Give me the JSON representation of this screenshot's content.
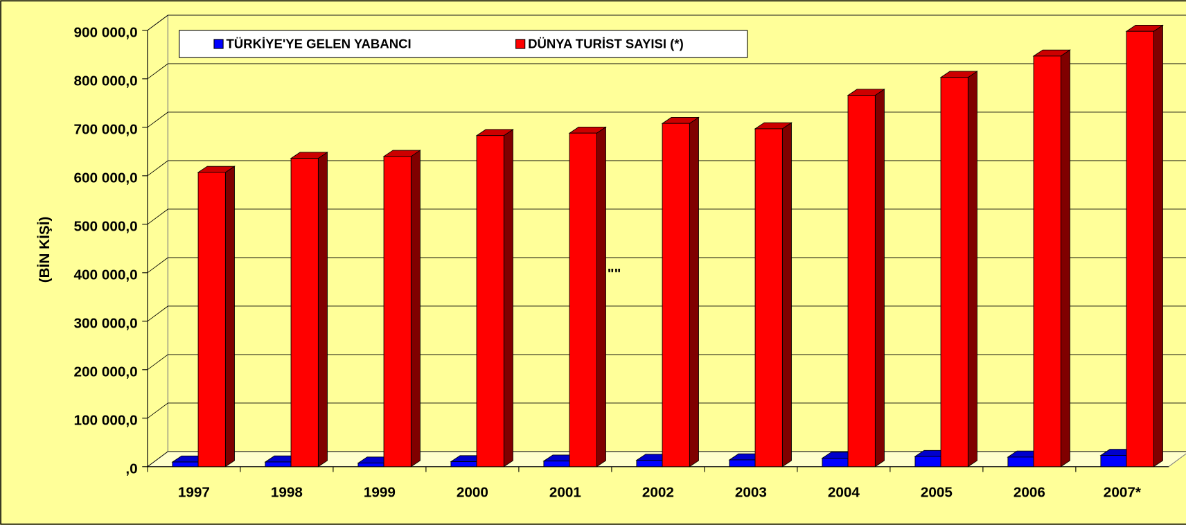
{
  "chart_data": {
    "type": "bar3d",
    "y_label": "(BİN KİŞİ)",
    "annotation": "\"\"",
    "categories": [
      "1997",
      "1998",
      "1999",
      "2000",
      "2001",
      "2002",
      "2003",
      "2004",
      "2005",
      "2006",
      "2007*"
    ],
    "series": [
      {
        "name": "TÜRKİYE'YE GELEN YABANCI",
        "color": "#0000ff",
        "values": [
          9689,
          9753,
          7487,
          10428,
          11619,
          13256,
          14030,
          17517,
          21125,
          19820,
          23341
        ]
      },
      {
        "name": "DÜNYA TURİST SAYISI (*)",
        "color": "#ff0000",
        "values": [
          607000,
          636000,
          640000,
          683000,
          688000,
          708000,
          697000,
          766000,
          803000,
          847000,
          898000
        ]
      }
    ],
    "ylim": [
      0,
      900000
    ],
    "yticks": [
      {
        "value": 0,
        "label": ",0"
      },
      {
        "value": 100000,
        "label": "100 000,0"
      },
      {
        "value": 200000,
        "label": "200 000,0"
      },
      {
        "value": 300000,
        "label": "300 000,0"
      },
      {
        "value": 400000,
        "label": "400 000,0"
      },
      {
        "value": 500000,
        "label": "500 000,0"
      },
      {
        "value": 600000,
        "label": "600 000,0"
      },
      {
        "value": 700000,
        "label": "700 000,0"
      },
      {
        "value": 800000,
        "label": "800 000,0"
      },
      {
        "value": 900000,
        "label": "900 000,0"
      }
    ],
    "grid": true
  }
}
